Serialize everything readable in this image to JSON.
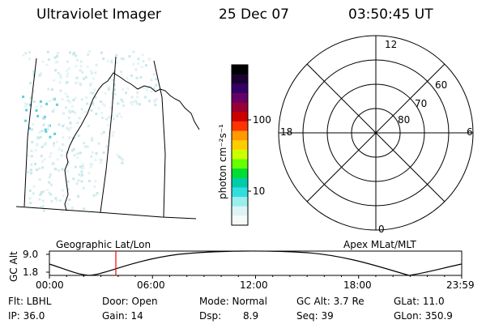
{
  "header": {
    "instrument": "Ultraviolet Imager",
    "date": "25 Dec 07",
    "time": "03:50:45 UT"
  },
  "colorbar": {
    "unit_label": "photon cm⁻²s⁻¹",
    "ticks": [
      "100",
      "10"
    ],
    "colors": [
      "#000000",
      "#1a0030",
      "#330066",
      "#660066",
      "#990033",
      "#cc0000",
      "#ff3300",
      "#ff9900",
      "#ffcc00",
      "#ccff00",
      "#66ff00",
      "#00dd33",
      "#00ccaa",
      "#33dddd",
      "#99eeee",
      "#ddf4f4",
      "#f6fafa"
    ]
  },
  "map_label": "Geographic Lat/Lon",
  "polar": {
    "label": "Apex MLat/MLT",
    "hour_labels": {
      "top": "12",
      "left": "18",
      "right": "6",
      "bottom": "0"
    },
    "lat_labels": [
      "60",
      "70",
      "80"
    ]
  },
  "altitude_plot": {
    "ylabel": "GC Alt",
    "yticks": [
      "9.0",
      "1.8"
    ],
    "xticks": [
      "00:00",
      "06:00",
      "12:00",
      "18:00",
      "23:59"
    ],
    "current_time_color": "#ff0000"
  },
  "info": {
    "flt": "Flt: LBHL",
    "door": "Door: Open",
    "mode": "Mode: Normal",
    "gcalt": "GC Alt: 3.7 Re",
    "glat": "GLat: 11.0",
    "ip": "IP: 36.0",
    "gain": "Gain: 14",
    "dsp_label": "Dsp:",
    "dsp_value": "8.9",
    "seq": "Seq: 39",
    "glon": "GLon: 350.9"
  }
}
